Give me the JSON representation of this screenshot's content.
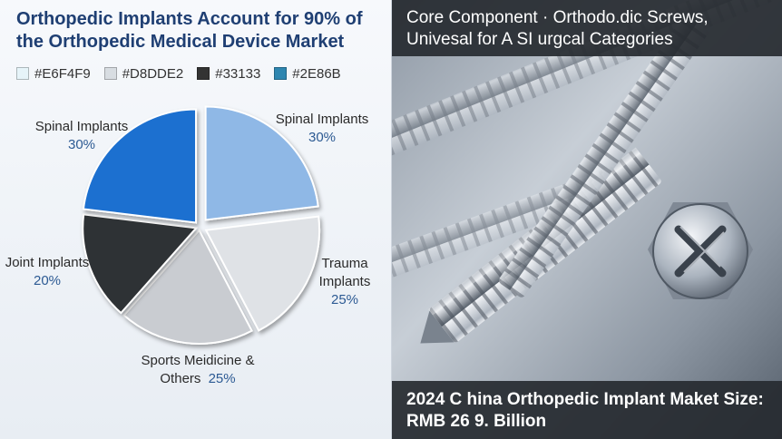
{
  "left_panel": {
    "title": "Orthopedic Implants Account for 90% of the Orthopedic Medical Device Market",
    "legend": [
      {
        "label": "#E6F4F9",
        "color": "#e6f4f9"
      },
      {
        "label": "#D8DDE2",
        "color": "#d8dde2"
      },
      {
        "label": "#33133",
        "color": "#333333"
      },
      {
        "label": "#2E86B",
        "color": "#2e86b0"
      }
    ]
  },
  "chart_data": {
    "type": "pie",
    "slices": [
      {
        "label": "Spinal Implants",
        "pct_label": "30%",
        "value": 30,
        "color": "#8fb8e6",
        "label_lines": [
          "Spinal Implants"
        ]
      },
      {
        "label": "Trauma Implants",
        "pct_label": "25%",
        "value": 25,
        "color": "#dfe2e6",
        "label_lines": [
          "Trauma",
          "Implants"
        ]
      },
      {
        "label": "Sports Meidicine & Others",
        "pct_label": "25%",
        "value": 25,
        "color": "#c9ccd1",
        "label_lines": [
          "Sports Meidicine &",
          "Others"
        ]
      },
      {
        "label": "Joint Implants",
        "pct_label": "20%",
        "value": 20,
        "color": "#2f3134",
        "label_lines": [
          "Joint Implants"
        ]
      },
      {
        "label": "Spinal Implants",
        "pct_label": "30%",
        "value": 30,
        "color": "#1f70d0",
        "label_lines": [
          "Spinal Implants"
        ]
      }
    ]
  },
  "right_panel": {
    "banner_title": "Core Component · Orthodo.dic Screws, Univesal for A SI urgcal Categories",
    "market_size": "2024 C hina Orthopedic Implant Maket Size: RMB 26 9. Billion",
    "image_subject": "orthopedic-screws-photo"
  }
}
